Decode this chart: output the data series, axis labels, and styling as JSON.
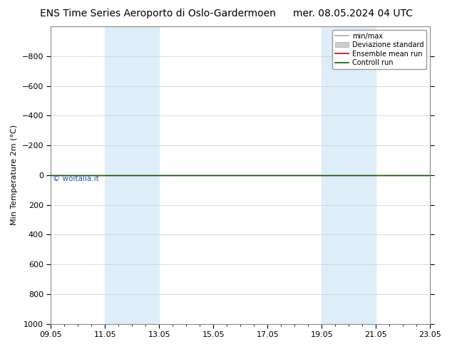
{
  "title": "ENS Time Series Aeroporto di Oslo-Gardermoen",
  "title_right": "mer. 08.05.2024 04 UTC",
  "ylabel": "Min Temperature 2m (°C)",
  "ylim_bottom": -1000,
  "ylim_top": 1000,
  "yticks": [
    -800,
    -600,
    -400,
    -200,
    0,
    200,
    400,
    600,
    800,
    1000
  ],
  "xtick_labels": [
    "09.05",
    "11.05",
    "13.05",
    "15.05",
    "17.05",
    "19.05",
    "21.05",
    "23.05"
  ],
  "xtick_positions": [
    0,
    2,
    4,
    6,
    8,
    10,
    12,
    14
  ],
  "shaded_bands": [
    {
      "start": 2,
      "end": 4
    },
    {
      "start": 10,
      "end": 12
    }
  ],
  "band_color": "#ddeef8",
  "watermark": "© woitalia.it",
  "watermark_color": "#2255bb",
  "control_run_y": 0,
  "ensemble_mean_y": 0,
  "legend_labels": [
    "min/max",
    "Deviazione standard",
    "Ensemble mean run",
    "Controll run"
  ],
  "legend_colors_line": [
    "#aaaaaa",
    "#cccccc",
    "#cc0000",
    "#006600"
  ],
  "bg_color": "#ffffff",
  "ax_bg_color": "#ffffff",
  "grid_color": "#cccccc",
  "title_fontsize": 10,
  "axis_fontsize": 8,
  "tick_fontsize": 8
}
